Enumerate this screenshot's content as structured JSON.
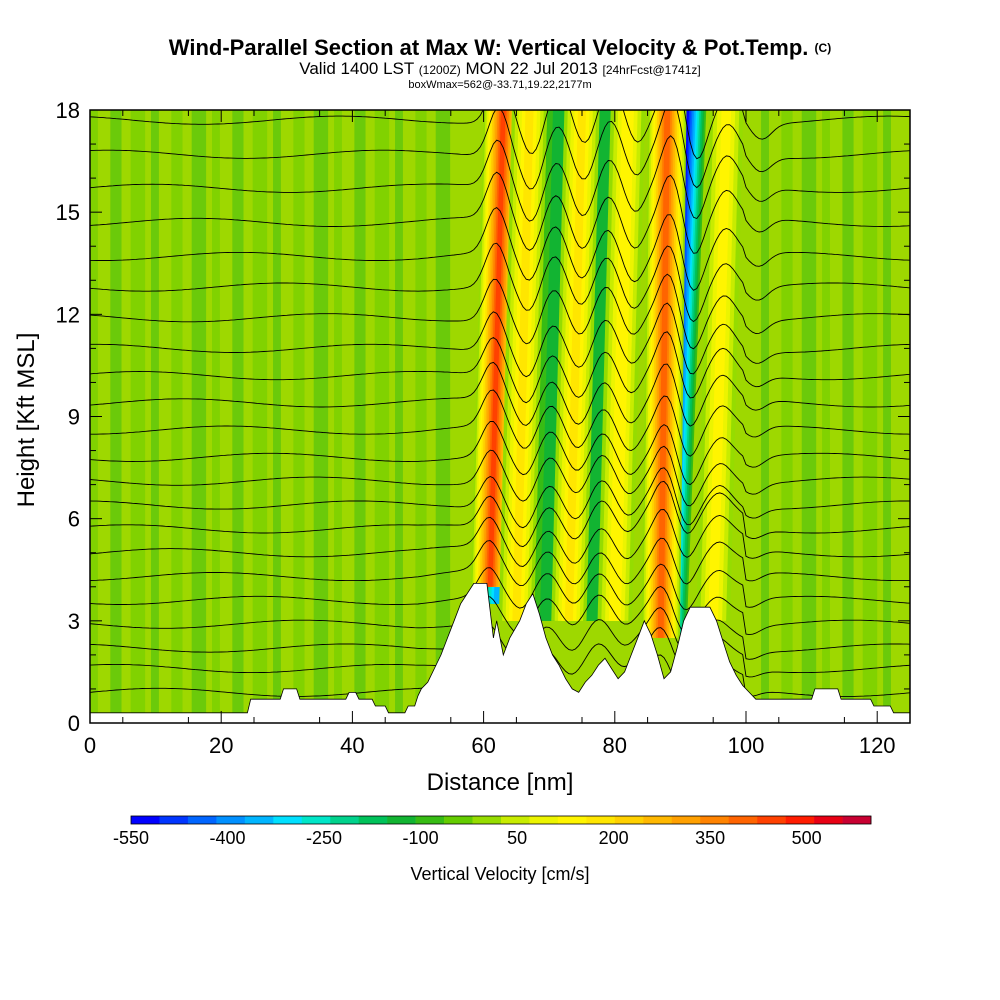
{
  "header": {
    "title": "Wind-Parallel Section at Max W: Vertical Velocity & Pot.Temp.",
    "copyright_mark": "(C)",
    "valid_prefix": "Valid 1400 LST",
    "valid_utc": "(1200Z)",
    "valid_date": "MON 22 Jul 2013",
    "forecast": "[24hrFcst@1741z]",
    "box_info": "boxWmax=562@-33.71,19.22,2177m"
  },
  "chart_data": {
    "type": "heatmap",
    "title": "Wind-Parallel Section at Max W: Vertical Velocity & Pot.Temp.",
    "xlabel": "Distance [nm]",
    "ylabel": "Height [Kft MSL]",
    "xlim": [
      0,
      125
    ],
    "ylim": [
      0,
      18
    ],
    "x_ticks": [
      0,
      20,
      40,
      60,
      80,
      100,
      120
    ],
    "y_ticks": [
      0,
      3,
      6,
      9,
      12,
      15,
      18
    ],
    "background_value_cm_s": 0,
    "updraft_bands": [
      {
        "x_top": 63,
        "x_bottom": 61,
        "y_bottom": 4,
        "peak_cm_s": 560
      },
      {
        "x_top": 67,
        "x_bottom": 65,
        "y_bottom": 3,
        "peak_cm_s": 250
      },
      {
        "x_top": 75,
        "x_bottom": 73,
        "y_bottom": 3,
        "peak_cm_s": 250
      },
      {
        "x_top": 82,
        "x_bottom": 80,
        "y_bottom": 3,
        "peak_cm_s": 220
      },
      {
        "x_top": 88,
        "x_bottom": 87,
        "y_bottom": 2.5,
        "peak_cm_s": 520
      },
      {
        "x_top": 97,
        "x_bottom": 95,
        "y_bottom": 3,
        "peak_cm_s": 200
      }
    ],
    "downdraft_bands": [
      {
        "x_top": 65,
        "x_bottom": 62,
        "y_bottom": 3.5,
        "peak_cm_s": -350
      },
      {
        "x_top": 91,
        "x_bottom": 88,
        "y_bottom": 2.5,
        "peak_cm_s": -550
      },
      {
        "x_top": 72,
        "x_bottom": 70,
        "y_bottom": 3,
        "peak_cm_s": -120
      },
      {
        "x_top": 79,
        "x_bottom": 77,
        "y_bottom": 3,
        "peak_cm_s": -120
      }
    ],
    "terrain_kft": [
      [
        0,
        0.3
      ],
      [
        24,
        0.3
      ],
      [
        24.5,
        0.7
      ],
      [
        29,
        0.7
      ],
      [
        29.5,
        1.0
      ],
      [
        31.5,
        1.0
      ],
      [
        32,
        0.7
      ],
      [
        39,
        0.7
      ],
      [
        39.5,
        0.9
      ],
      [
        40.5,
        0.9
      ],
      [
        41,
        0.7
      ],
      [
        43,
        0.7
      ],
      [
        43.5,
        0.5
      ],
      [
        45,
        0.5
      ],
      [
        45.5,
        0.3
      ],
      [
        48,
        0.3
      ],
      [
        48.5,
        0.5
      ],
      [
        49.5,
        0.5
      ],
      [
        50,
        0.8
      ],
      [
        50.5,
        1.0
      ],
      [
        51.5,
        1.2
      ],
      [
        52.5,
        1.6
      ],
      [
        53.5,
        2.0
      ],
      [
        54.5,
        2.5
      ],
      [
        55.5,
        3.0
      ],
      [
        56.5,
        3.5
      ],
      [
        57.5,
        3.8
      ],
      [
        58.5,
        4.1
      ],
      [
        60.5,
        4.1
      ],
      [
        61.5,
        2.5
      ],
      [
        62,
        3.0
      ],
      [
        63,
        2.0
      ],
      [
        64,
        2.5
      ],
      [
        65.5,
        3.0
      ],
      [
        66.5,
        3.5
      ],
      [
        67.5,
        3.8
      ],
      [
        68.5,
        3.2
      ],
      [
        69.5,
        2.5
      ],
      [
        70.5,
        2.0
      ],
      [
        71.5,
        1.7
      ],
      [
        72.5,
        1.3
      ],
      [
        73.5,
        1.0
      ],
      [
        74.5,
        0.9
      ],
      [
        75.5,
        1.2
      ],
      [
        76.5,
        1.4
      ],
      [
        77.5,
        1.7
      ],
      [
        78.5,
        1.9
      ],
      [
        79.5,
        1.6
      ],
      [
        80.5,
        1.3
      ],
      [
        81.5,
        1.5
      ],
      [
        82.5,
        2.0
      ],
      [
        83.5,
        2.5
      ],
      [
        84.5,
        3.0
      ],
      [
        85.5,
        2.6
      ],
      [
        86.5,
        2.0
      ],
      [
        87.5,
        1.3
      ],
      [
        88.5,
        1.5
      ],
      [
        89.5,
        2.2
      ],
      [
        90.5,
        3.0
      ],
      [
        91.5,
        3.4
      ],
      [
        92.5,
        3.4
      ],
      [
        94.5,
        3.4
      ],
      [
        95.5,
        3.0
      ],
      [
        96.5,
        2.4
      ],
      [
        97.5,
        1.8
      ],
      [
        98.5,
        1.4
      ],
      [
        99.5,
        1.1
      ],
      [
        100.5,
        0.9
      ],
      [
        101.5,
        0.7
      ],
      [
        110,
        0.7
      ],
      [
        110.5,
        1.0
      ],
      [
        114,
        1.0
      ],
      [
        114.5,
        0.7
      ],
      [
        119,
        0.7
      ],
      [
        119.5,
        0.5
      ],
      [
        122,
        0.5
      ],
      [
        122.5,
        0.3
      ],
      [
        125,
        0.3
      ]
    ],
    "isentrope_base_heights_kft": [
      0.9,
      1.6,
      2.2,
      2.9,
      3.6,
      4.3,
      5.0,
      5.7,
      6.4,
      7.1,
      7.8,
      8.6,
      9.4,
      10.2,
      11.0,
      11.9,
      12.8,
      13.7,
      14.7,
      15.7,
      16.7,
      17.7
    ],
    "colorbar": {
      "title": "Vertical Velocity [cm/s]",
      "min": -550,
      "max": 600,
      "step": 50,
      "tick_values": [
        -550,
        -400,
        -250,
        -100,
        50,
        200,
        350,
        500
      ],
      "tick_labels": [
        "-550",
        "-400",
        "-250",
        "-100",
        "50",
        "200",
        "350",
        "500"
      ],
      "colors": [
        "#0000ff",
        "#0035ff",
        "#0065ff",
        "#0090ff",
        "#00b5ff",
        "#00e0ff",
        "#00e6c8",
        "#00d28c",
        "#00c25a",
        "#12b432",
        "#37bc14",
        "#64cc00",
        "#96dc00",
        "#c8ec00",
        "#ecf400",
        "#fff500",
        "#ffe600",
        "#ffd000",
        "#ffb800",
        "#ffa000",
        "#ff8300",
        "#ff6400",
        "#ff4100",
        "#ff1c00",
        "#e80014",
        "#c80032"
      ]
    }
  }
}
